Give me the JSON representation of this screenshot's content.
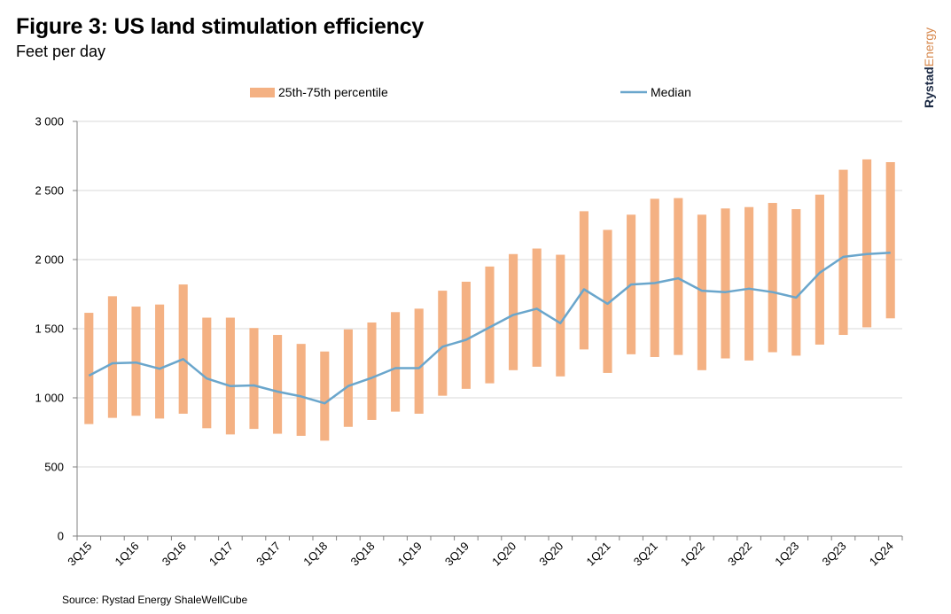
{
  "title": "Figure 3: US land stimulation efficiency",
  "subtitle": "Feet per day",
  "logo": {
    "part1": "Rystad",
    "part2": "Energy"
  },
  "source": "Source: Rystad Energy ShaleWellCube",
  "chart_data": {
    "type": "bar",
    "categories": [
      "3Q15",
      "4Q15",
      "1Q16",
      "2Q16",
      "3Q16",
      "4Q16",
      "1Q17",
      "2Q17",
      "3Q17",
      "4Q17",
      "1Q18",
      "2Q18",
      "3Q18",
      "4Q18",
      "1Q19",
      "2Q19",
      "3Q19",
      "4Q19",
      "1Q20",
      "2Q20",
      "3Q20",
      "4Q20",
      "1Q21",
      "2Q21",
      "3Q21",
      "4Q21",
      "1Q22",
      "2Q22",
      "3Q22",
      "4Q22",
      "1Q23",
      "2Q23",
      "3Q23",
      "4Q23",
      "1Q24"
    ],
    "x_tick_labels": [
      "3Q15",
      "1Q16",
      "3Q16",
      "1Q17",
      "3Q17",
      "1Q18",
      "3Q18",
      "1Q19",
      "3Q19",
      "1Q20",
      "3Q20",
      "1Q21",
      "3Q21",
      "1Q22",
      "3Q22",
      "1Q23",
      "3Q23",
      "1Q24"
    ],
    "series": [
      {
        "name": "25th-75th percentile",
        "kind": "floating-bar",
        "color": "#f4b183",
        "low": [
          810,
          855,
          870,
          850,
          885,
          780,
          735,
          775,
          740,
          725,
          690,
          790,
          840,
          900,
          885,
          1015,
          1065,
          1105,
          1200,
          1225,
          1155,
          1350,
          1180,
          1315,
          1295,
          1310,
          1200,
          1285,
          1270,
          1330,
          1305,
          1385,
          1455,
          1510,
          1575
        ],
        "high": [
          1615,
          1735,
          1660,
          1675,
          1820,
          1580,
          1580,
          1505,
          1455,
          1390,
          1335,
          1495,
          1545,
          1620,
          1645,
          1775,
          1840,
          1950,
          2040,
          2080,
          2035,
          2350,
          2215,
          2325,
          2440,
          2445,
          2325,
          2370,
          2380,
          2410,
          2365,
          2470,
          2650,
          2725,
          2705
        ]
      },
      {
        "name": "Median",
        "kind": "line",
        "color": "#6aa6cc",
        "values": [
          1160,
          1250,
          1255,
          1210,
          1280,
          1140,
          1085,
          1090,
          1045,
          1010,
          960,
          1085,
          1145,
          1215,
          1215,
          1370,
          1420,
          1510,
          1600,
          1645,
          1540,
          1785,
          1680,
          1820,
          1830,
          1865,
          1775,
          1765,
          1790,
          1765,
          1725,
          1905,
          2020,
          2040,
          2050
        ]
      }
    ],
    "ylim": [
      0,
      3000
    ],
    "yticks": [
      0,
      500,
      1000,
      1500,
      2000,
      2500,
      3000
    ],
    "ytick_labels": [
      "0",
      "500",
      "1 000",
      "1 500",
      "2 000",
      "2 500",
      "3 000"
    ],
    "grid": true,
    "legend_position": "top",
    "axis_color": "#808080",
    "grid_color": "#d9d9d9"
  }
}
